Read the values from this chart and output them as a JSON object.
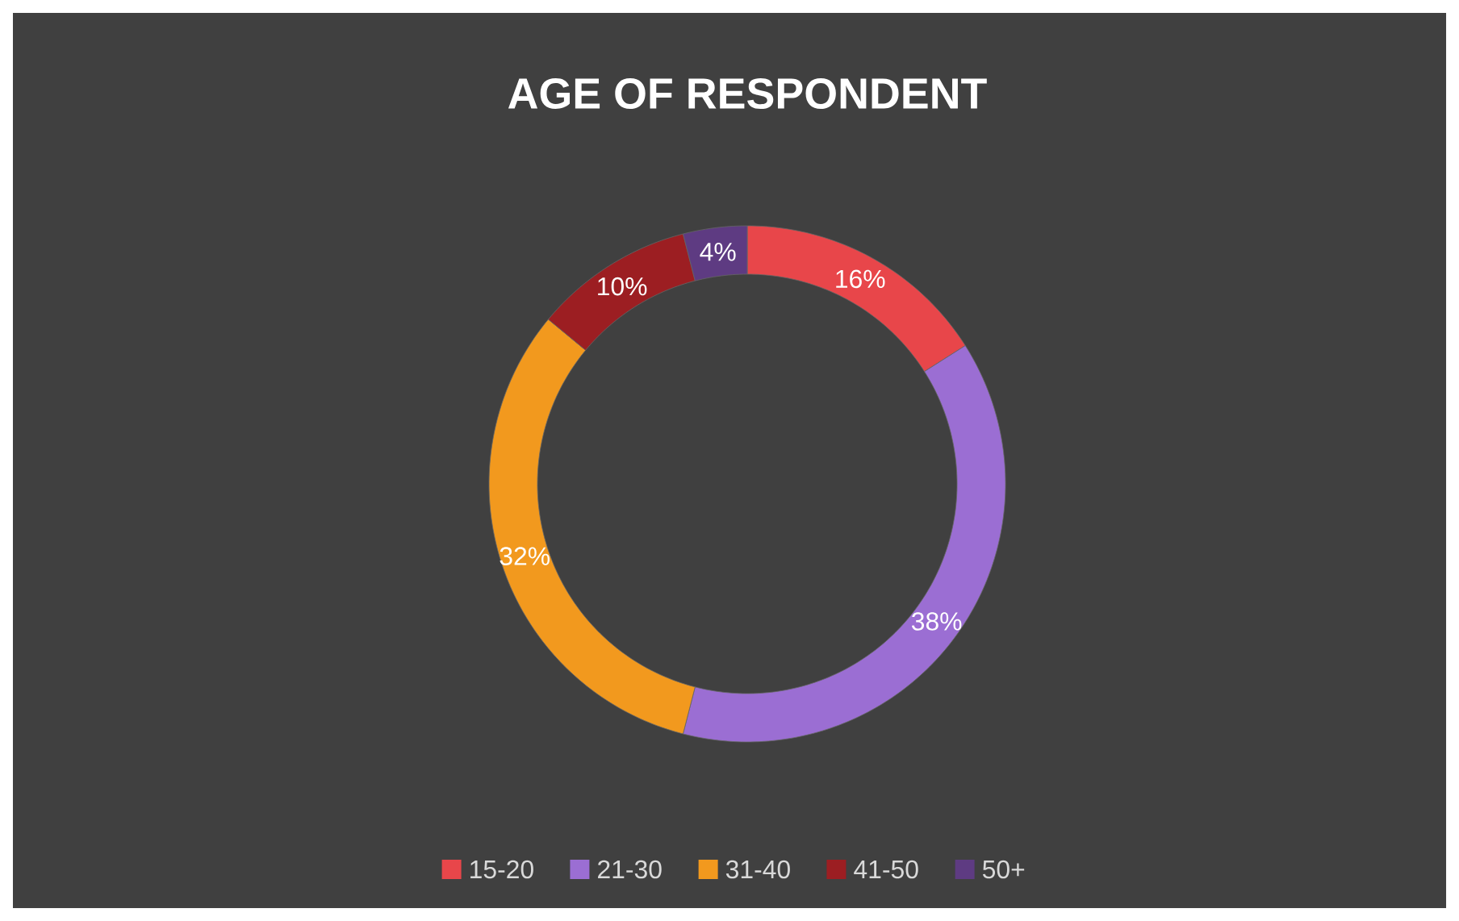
{
  "chart_data": {
    "type": "donut",
    "title": "AGE OF RESPONDENT",
    "categories": [
      "15-20",
      "21-30",
      "31-40",
      "41-50",
      "50+"
    ],
    "values": [
      16,
      38,
      32,
      10,
      4
    ],
    "colors": [
      "#e8464a",
      "#9b6ed3",
      "#f2991e",
      "#9c1e22",
      "#5e3b82"
    ],
    "value_labels": [
      "16%",
      "38%",
      "32%",
      "10%",
      "4%"
    ],
    "legend": "bottom"
  }
}
